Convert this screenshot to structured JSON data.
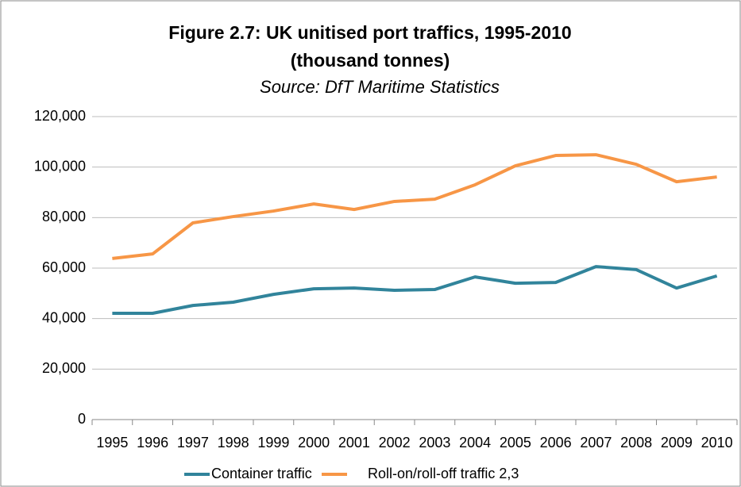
{
  "chart_data": {
    "type": "line",
    "title": "Figure 2.7:  UK unitised port traffics, 1995-2010",
    "subtitle": "(thousand tonnes)",
    "source": "Source:  DfT Maritime Statistics",
    "categories": [
      "1995",
      "1996",
      "1997",
      "1998",
      "1999",
      "2000",
      "2001",
      "2002",
      "2003",
      "2004",
      "2005",
      "2006",
      "2007",
      "2008",
      "2009",
      "2010"
    ],
    "series": [
      {
        "name": "Container traffic",
        "color": "#31849b",
        "values": [
          42100,
          42100,
          45200,
          46500,
          49600,
          51800,
          52100,
          51200,
          51500,
          56500,
          54000,
          54300,
          60600,
          59400,
          52100,
          56900
        ]
      },
      {
        "name": "Roll-on/roll-off traffic 2,3",
        "color": "#f79646",
        "values": [
          63800,
          65600,
          77900,
          80400,
          82600,
          85400,
          83200,
          86400,
          87300,
          93000,
          100500,
          104600,
          104900,
          101100,
          94200,
          96100
        ]
      }
    ],
    "ylim": [
      0,
      120000
    ],
    "yticks": [
      0,
      {
        "value": 20000,
        "label": "20,000"
      },
      {
        "value": 40000,
        "label": "40,000"
      },
      {
        "value": 60000,
        "label": "60,000"
      },
      {
        "value": 80000,
        "label": "80,000"
      },
      {
        "value": 100000,
        "label": "100,000"
      },
      {
        "value": 120000,
        "label": "120,000"
      }
    ],
    "grid": true,
    "legend": "bottom"
  }
}
